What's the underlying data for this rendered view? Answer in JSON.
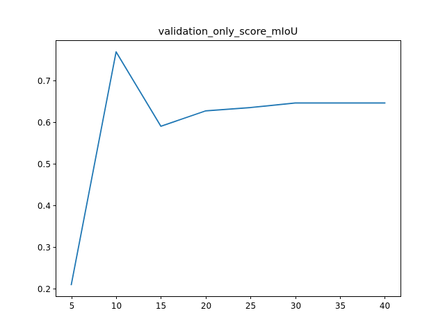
{
  "chart_data": {
    "type": "line",
    "title": "validation_only_score_mIoU",
    "xlabel": "",
    "ylabel": "",
    "x": [
      5,
      10,
      15,
      20,
      25,
      30,
      35,
      40
    ],
    "series": [
      {
        "values": [
          0.209,
          0.769,
          0.59,
          0.627,
          0.635,
          0.646,
          0.646,
          0.646
        ],
        "color": "#1f77b4"
      }
    ],
    "xlim": [
      3.25,
      41.75
    ],
    "ylim": [
      0.181,
      0.797
    ],
    "xticks": [
      5,
      10,
      15,
      20,
      25,
      30,
      35,
      40
    ],
    "yticks": [
      0.2,
      0.3,
      0.4,
      0.5,
      0.6,
      0.7
    ],
    "grid": false,
    "legend": false
  }
}
